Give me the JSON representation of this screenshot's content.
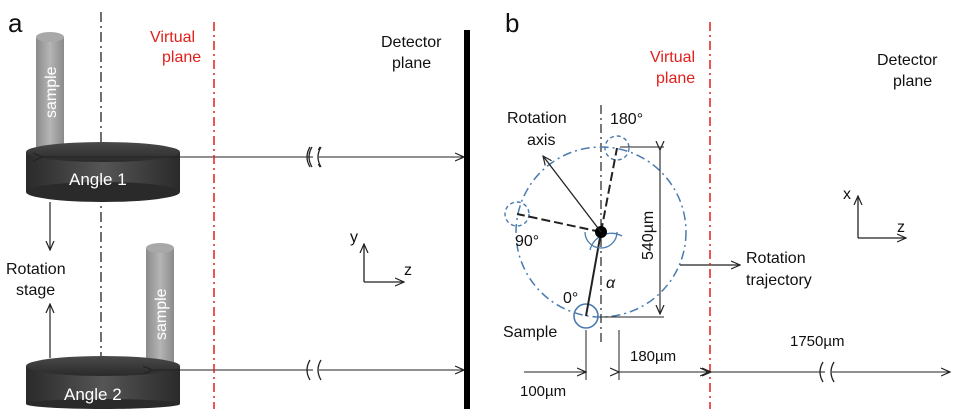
{
  "panel_a": {
    "letter": "a",
    "virtual_plane_label": [
      "Virtual",
      "plane"
    ],
    "detector_plane_label": [
      "Detector",
      "plane"
    ],
    "sample_label": "sample",
    "angle_1_label": "Angle 1",
    "angle_2_label": "Angle 2",
    "rotation_stage_label": [
      "Rotation",
      "stage"
    ],
    "axis_vertical": "y",
    "axis_horizontal": "z"
  },
  "panel_b": {
    "letter": "b",
    "virtual_plane_label": [
      "Virtual",
      "plane"
    ],
    "detector_plane_label": [
      "Detector",
      "plane"
    ],
    "rotation_axis_label": [
      "Rotation",
      "axis"
    ],
    "angle_180": "180°",
    "angle_90": "90°",
    "angle_0": "0°",
    "alpha": "α",
    "sample_label": "Sample",
    "rotation_trajectory_label": [
      "Rotation",
      "trajectory"
    ],
    "diameter": "540µm",
    "dist_1": "100µm",
    "dist_2": "180µm",
    "dist_3": "1750µm",
    "axis_vertical": "x",
    "axis_horizontal": "z"
  },
  "colors": {
    "virtual_plane": "#e0201c",
    "trajectory": "#4a7bb0",
    "disk": "#3a3a3a",
    "sample_rod": "#9c9c9c"
  }
}
